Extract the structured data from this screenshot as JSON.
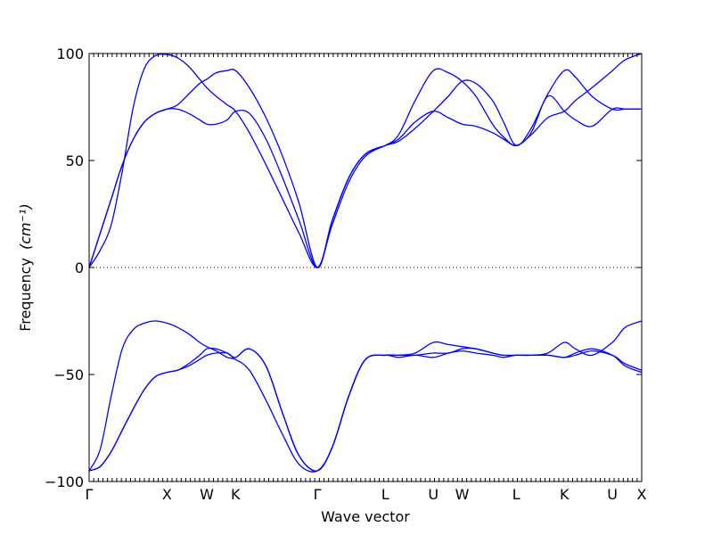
{
  "chart_data": {
    "type": "line",
    "title": "",
    "xlabel": "Wave vector",
    "ylabel": "Frequency",
    "ylabel_unit": "(cm⁻¹)",
    "ylim": [
      -100,
      100
    ],
    "xlim": [
      0,
      100
    ],
    "y_ticks": [
      -100,
      -50,
      0,
      50,
      100
    ],
    "y_tick_labels": [
      "−100",
      "−50",
      "0",
      "50",
      "100"
    ],
    "x_ticks": [
      {
        "label": "Γ",
        "x": 0
      },
      {
        "label": "X",
        "x": 14.1
      },
      {
        "label": "W",
        "x": 21.3
      },
      {
        "label": "K",
        "x": 26.5
      },
      {
        "label": "Γ",
        "x": 41.3
      },
      {
        "label": "L",
        "x": 53.6
      },
      {
        "label": "U",
        "x": 62.3
      },
      {
        "label": "W",
        "x": 67.5
      },
      {
        "label": "L",
        "x": 77.3
      },
      {
        "label": "K",
        "x": 86.0
      },
      {
        "label": "U",
        "x": 94.7
      },
      {
        "label": "X",
        "x": 100
      }
    ],
    "zero_line": true,
    "color": "#0000ff",
    "series": [
      {
        "x": [
          0,
          2,
          4,
          6,
          8,
          10,
          12,
          14.1,
          16,
          18,
          20,
          21.3,
          23,
          25,
          26.5,
          29,
          32,
          35,
          38,
          41.3,
          44,
          47,
          50,
          53.6,
          56,
          59,
          62.3,
          65,
          67.5,
          70,
          73,
          75,
          77.3,
          80,
          83,
          86.0,
          88,
          91,
          94.7,
          97,
          100
        ],
        "y": [
          0,
          8,
          20,
          45,
          75,
          93,
          99,
          99.5,
          98,
          94,
          88,
          84,
          80,
          76,
          73,
          63,
          48,
          32,
          16,
          0,
          20,
          40,
          52,
          57,
          60,
          68,
          73,
          70,
          67,
          66,
          63,
          60,
          57,
          62,
          70,
          73,
          78,
          84,
          92,
          97,
          100
        ]
      },
      {
        "x": [
          0,
          2,
          4,
          6,
          8,
          10,
          12,
          14.1,
          16,
          18,
          20,
          21.3,
          23,
          25,
          26.5,
          29,
          32,
          35,
          38,
          41.3,
          44,
          47,
          50,
          53.6,
          56,
          59,
          62.3,
          65,
          67.5,
          70,
          73,
          75,
          77.3,
          80,
          83,
          86.0,
          88,
          91,
          94.7,
          97,
          100
        ],
        "y": [
          0,
          16,
          32,
          48,
          60,
          68,
          72,
          74,
          74,
          72,
          69,
          67,
          67,
          69,
          73,
          72,
          60,
          42,
          22,
          0,
          22,
          42,
          53,
          57,
          59,
          65,
          73,
          80,
          87,
          86,
          78,
          68,
          57,
          65,
          81,
          92,
          89,
          80,
          74,
          74,
          74
        ]
      },
      {
        "x": [
          0,
          2,
          4,
          6,
          8,
          10,
          12,
          14.1,
          16,
          18,
          20,
          21.3,
          23,
          25,
          26.5,
          29,
          32,
          35,
          38,
          41.3,
          44,
          47,
          50,
          53.6,
          56,
          59,
          62.3,
          65,
          67.5,
          70,
          73,
          75,
          77.3,
          80,
          83,
          86.0,
          88,
          91,
          94.7,
          97,
          100
        ],
        "y": [
          0,
          16,
          32,
          48,
          60,
          68,
          72,
          74,
          76,
          81,
          86,
          88,
          91,
          92,
          92,
          84,
          70,
          52,
          30,
          0,
          22,
          42,
          53,
          57,
          62,
          78,
          92,
          91,
          87,
          80,
          67,
          61,
          57,
          63,
          80,
          73,
          69,
          66,
          74,
          74,
          74
        ]
      },
      {
        "x": [
          0,
          2,
          4,
          6,
          8,
          10,
          12,
          14.1,
          16,
          18,
          20,
          21.3,
          23,
          25,
          26.5,
          29,
          32,
          35,
          38,
          41.3,
          44,
          47,
          50,
          53.6,
          56,
          59,
          62.3,
          65,
          67.5,
          70,
          73,
          75,
          77.3,
          80,
          83,
          86.0,
          88,
          91,
          94.7,
          97,
          100
        ],
        "y": [
          -95,
          -93,
          -86,
          -76,
          -66,
          -57,
          -51,
          -49,
          -48,
          -45,
          -41,
          -38,
          -38,
          -40,
          -42,
          -38,
          -46,
          -68,
          -88,
          -95,
          -84,
          -60,
          -43,
          -41,
          -41,
          -41,
          -40,
          -40,
          -38,
          -38,
          -40,
          -41,
          -41,
          -41,
          -41,
          -42,
          -41,
          -39,
          -41,
          -45,
          -48
        ]
      },
      {
        "x": [
          0,
          2,
          4,
          6,
          8,
          10,
          12,
          14.1,
          16,
          18,
          20,
          21.3,
          23,
          25,
          26.5,
          29,
          32,
          35,
          38,
          41.3,
          44,
          47,
          50,
          53.6,
          56,
          59,
          62.3,
          65,
          67.5,
          70,
          73,
          75,
          77.3,
          80,
          83,
          86.0,
          88,
          91,
          94.7,
          97,
          100
        ],
        "y": [
          -95,
          -93,
          -86,
          -76,
          -66,
          -57,
          -51,
          -49,
          -48,
          -46,
          -43,
          -41,
          -40,
          -40,
          -42,
          -38,
          -46,
          -68,
          -88,
          -95,
          -84,
          -60,
          -43,
          -41,
          -42,
          -41,
          -42,
          -40,
          -39,
          -40,
          -41,
          -42,
          -41,
          -41,
          -41,
          -42,
          -40,
          -38,
          -41,
          -46,
          -49
        ]
      },
      {
        "x": [
          0,
          2,
          4,
          6,
          8,
          10,
          12,
          14.1,
          16,
          18,
          20,
          21.3,
          23,
          25,
          26.5,
          29,
          32,
          35,
          38,
          41.3,
          44,
          47,
          50,
          53.6,
          56,
          59,
          62.3,
          65,
          67.5,
          70,
          73,
          75,
          77.3,
          80,
          83,
          86.0,
          88,
          91,
          94.7,
          97,
          100
        ],
        "y": [
          -95,
          -85,
          -60,
          -38,
          -29,
          -26,
          -25,
          -26,
          -28,
          -31,
          -35,
          -37,
          -39,
          -42,
          -43,
          -48,
          -62,
          -78,
          -92,
          -95,
          -84,
          -60,
          -43,
          -41,
          -41,
          -40,
          -35,
          -36,
          -37,
          -38,
          -40,
          -41,
          -41,
          -41,
          -40,
          -35,
          -38,
          -41,
          -35,
          -28,
          -25
        ]
      }
    ]
  }
}
